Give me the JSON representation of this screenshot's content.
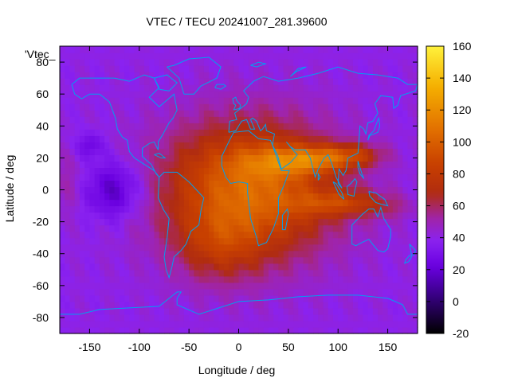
{
  "chart_data": {
    "type": "heatmap",
    "title": "VTEC / TECU 20241007_281.39600",
    "xlabel": "Longitude / deg",
    "ylabel": "Latitude / deg",
    "xlim": [
      -180,
      180
    ],
    "ylim": [
      -90,
      90
    ],
    "xticks": [
      -150,
      -100,
      -50,
      0,
      50,
      100,
      150
    ],
    "yticks": [
      -80,
      -60,
      -40,
      -20,
      0,
      20,
      40,
      60,
      80
    ],
    "legend_key": "'Vtec_",
    "colorbar": {
      "range": [
        -20,
        160
      ],
      "ticks": [
        -20,
        0,
        20,
        40,
        60,
        80,
        100,
        120,
        140,
        160
      ],
      "palette": [
        "#000000",
        "#3b008a",
        "#6a00e0",
        "#8a22f0",
        "#a024a8",
        "#b02c10",
        "#c84000",
        "#e27000",
        "#f5b000",
        "#fff23c"
      ],
      "palette_stops": [
        -20,
        5,
        22,
        38,
        52,
        68,
        86,
        108,
        135,
        160
      ]
    },
    "features": {
      "background_vtec": 40,
      "anomaly_peaks": [
        {
          "lon": 60,
          "lat": 20,
          "vtec": 150
        },
        {
          "lon": 110,
          "lat": -5,
          "vtec": 118
        },
        {
          "lon": 10,
          "lat": -30,
          "vtec": 85
        }
      ],
      "minimum_region": {
        "lon": -125,
        "lat": 0,
        "vtec": 12
      }
    },
    "coastline_color": "#00a0f0"
  }
}
